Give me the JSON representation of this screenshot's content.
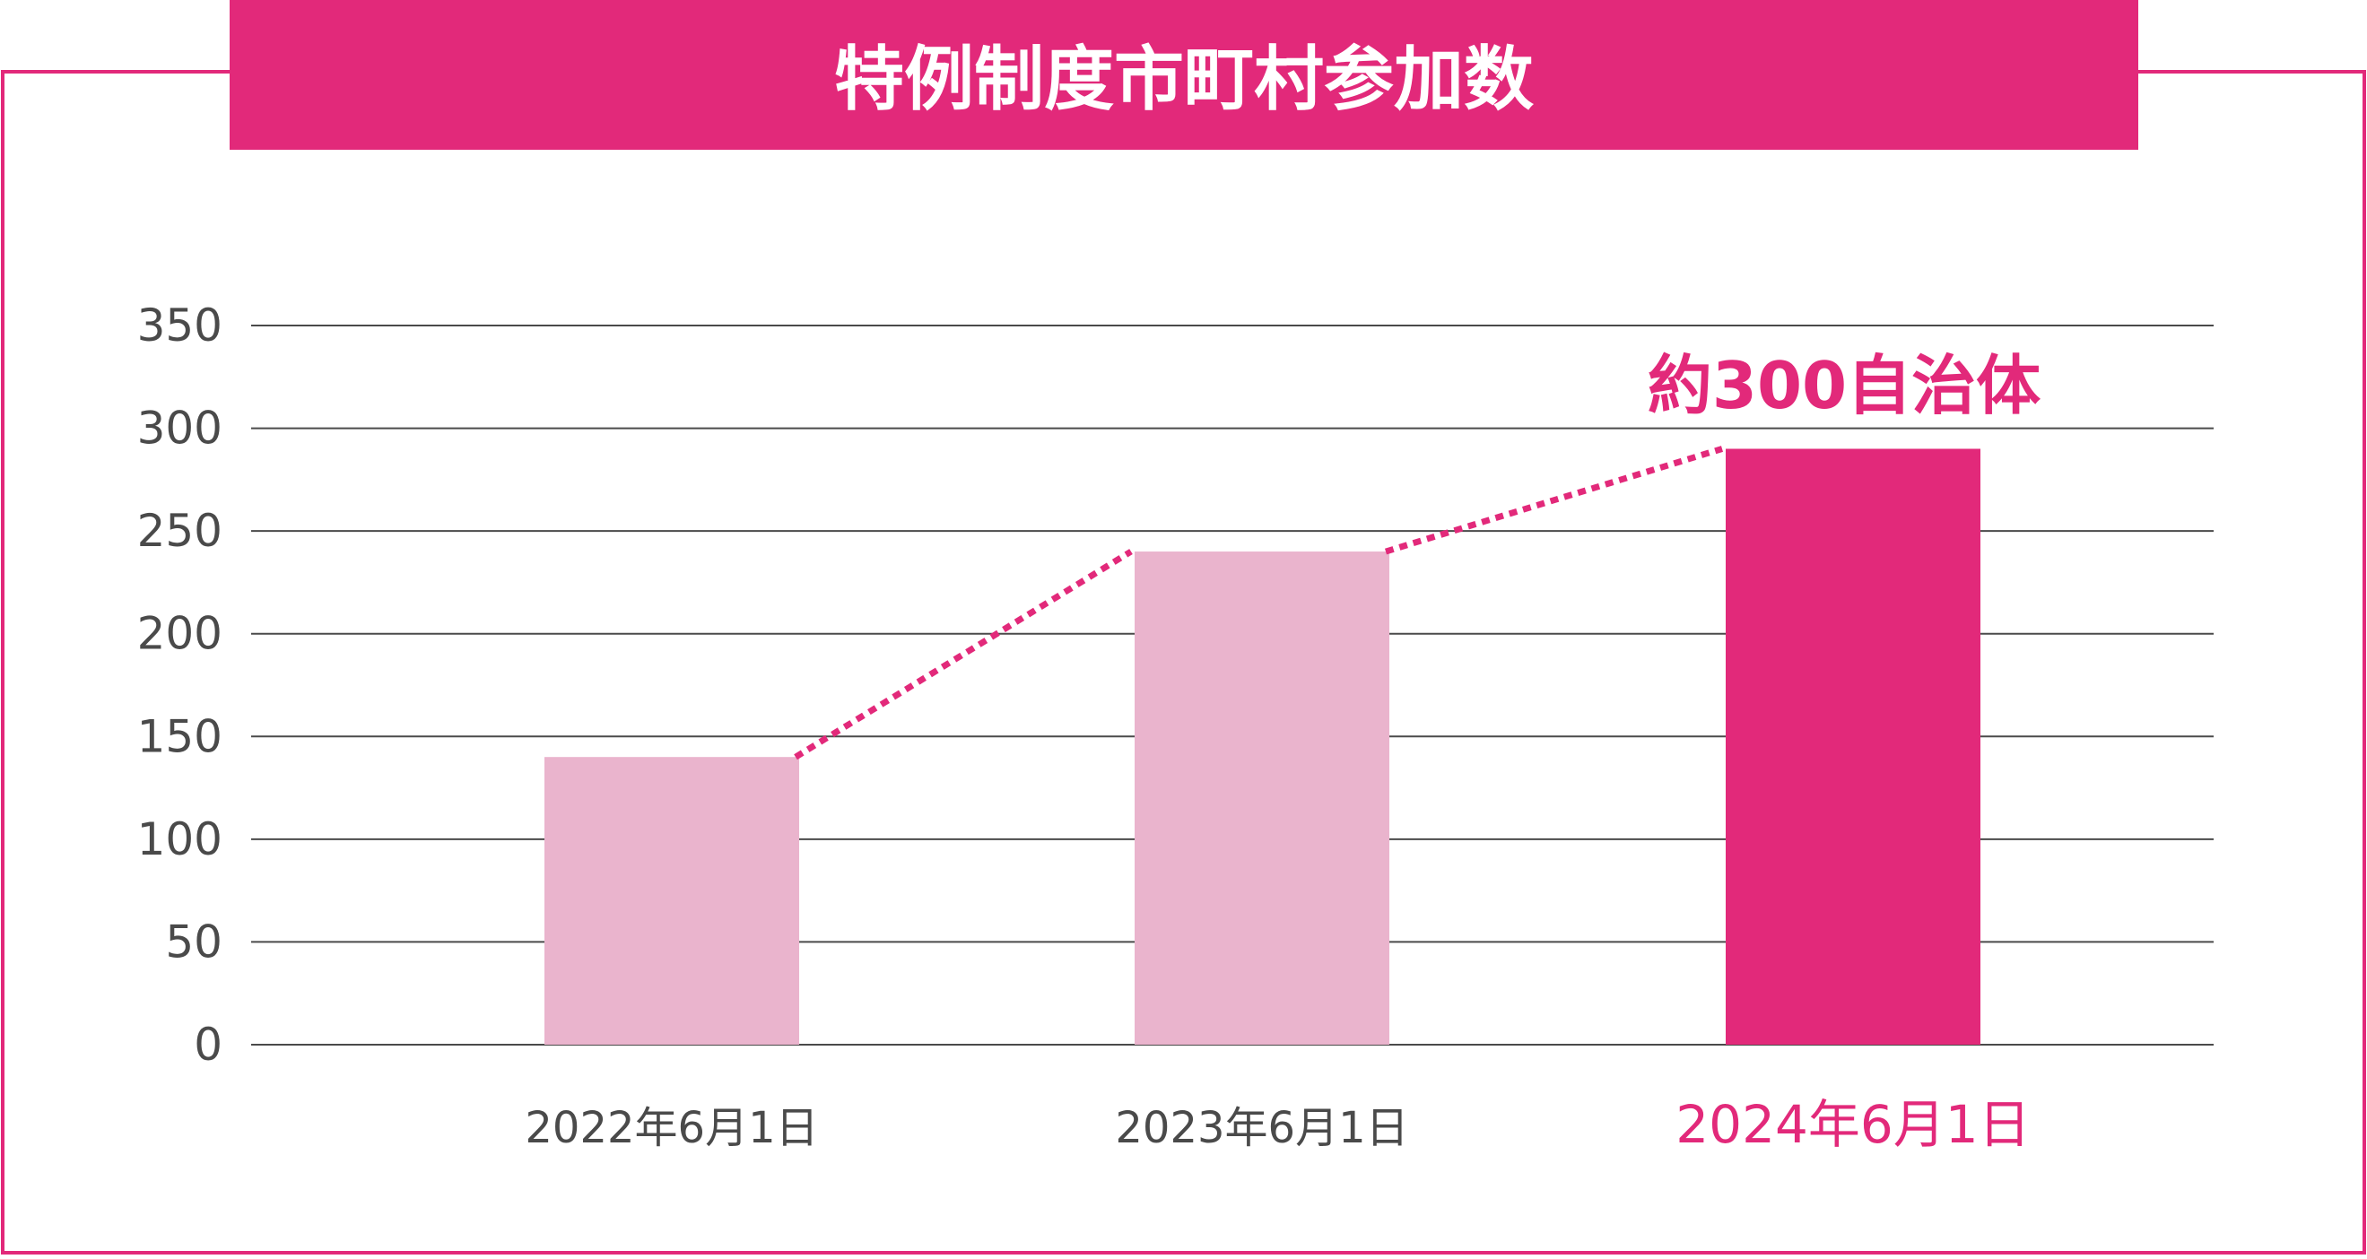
{
  "title": "特例制度市町村参加数",
  "colors": {
    "accent": "#E2297A",
    "bar_light": "#EAB4CD",
    "bar_highlight": "#E2297A",
    "axis_text": "#4A4A4A",
    "grid": "#4A4A4A",
    "title_text": "#FFFFFF"
  },
  "chart_data": {
    "type": "bar",
    "title": "特例制度市町村参加数",
    "categories": [
      "2022年6月1日",
      "2023年6月1日",
      "2024年6月1日"
    ],
    "values": [
      140,
      240,
      290
    ],
    "highlight_index": 2,
    "ylim": [
      0,
      350
    ],
    "yticks": [
      0,
      50,
      100,
      150,
      200,
      250,
      300,
      350
    ],
    "grid": true,
    "trend_line": "dotted",
    "annotation": {
      "text": "約300自治体",
      "category_index": 2
    }
  }
}
